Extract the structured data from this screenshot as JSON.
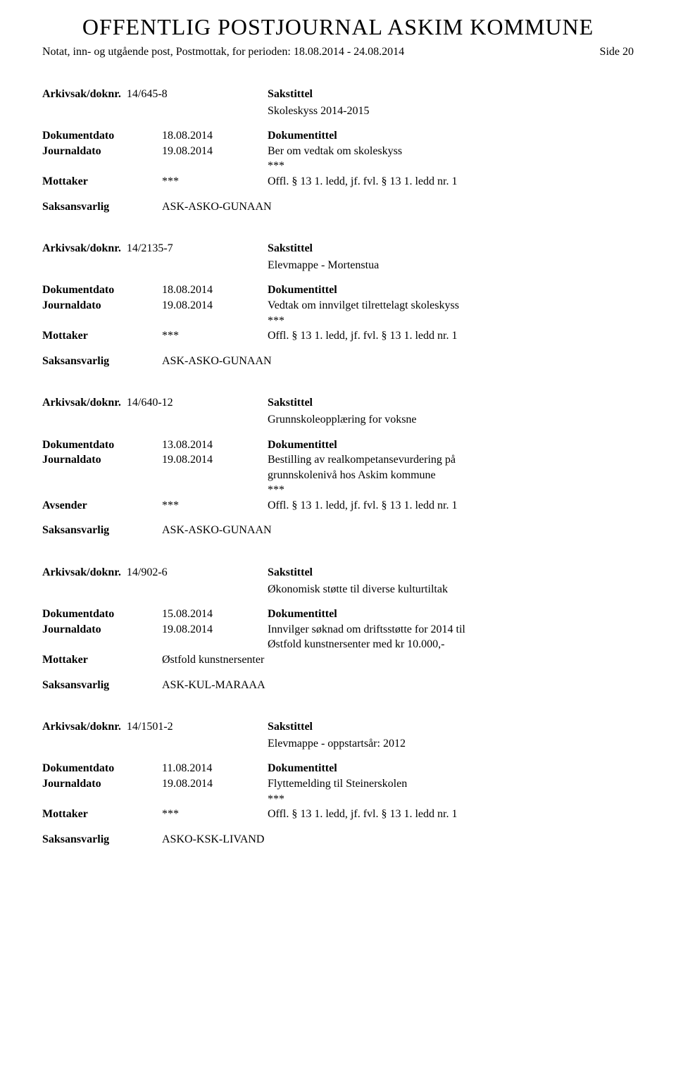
{
  "header": {
    "title": "OFFENTLIG POSTJOURNAL ASKIM KOMMUNE",
    "subtitle": "Notat, inn- og utgående post, Postmottak, for perioden: 18.08.2014 - 24.08.2014",
    "side_label": "Side 20"
  },
  "labels": {
    "arkiv": "Arkivsak/doknr.",
    "sakstittel": "Sakstittel",
    "dokumentdato": "Dokumentdato",
    "dokumentittel": "Dokumentittel",
    "journaldato": "Journaldato",
    "mottaker": "Mottaker",
    "avsender": "Avsender",
    "saksansvarlig": "Saksansvarlig"
  },
  "entries": [
    {
      "arkiv": "14/645-8",
      "sakstittel": "Skoleskyss 2014-2015",
      "dokumentdato": "18.08.2014",
      "journaldato": "19.08.2014",
      "doktittel_lines": [
        "Ber om vedtak om skoleskyss",
        "***"
      ],
      "party_label": "Mottaker",
      "party_value": "***",
      "party_right": "Offl. § 13 1. ledd, jf. fvl. § 13 1. ledd nr. 1",
      "saksansvarlig": "ASK-ASKO-GUNAAN"
    },
    {
      "arkiv": "14/2135-7",
      "sakstittel": "Elevmappe - Mortenstua",
      "dokumentdato": "18.08.2014",
      "journaldato": "19.08.2014",
      "doktittel_lines": [
        "Vedtak om innvilget tilrettelagt skoleskyss",
        "***"
      ],
      "party_label": "Mottaker",
      "party_value": "***",
      "party_right": "Offl. § 13 1. ledd, jf. fvl. § 13 1. ledd nr. 1",
      "saksansvarlig": "ASK-ASKO-GUNAAN"
    },
    {
      "arkiv": "14/640-12",
      "sakstittel": "Grunnskoleopplæring for voksne",
      "dokumentdato": "13.08.2014",
      "journaldato": "19.08.2014",
      "doktittel_lines": [
        "Bestilling av realkompetansevurdering på",
        "grunnskolenivå hos Askim kommune",
        "***"
      ],
      "party_label": "Avsender",
      "party_value": "***",
      "party_right": "Offl. § 13 1. ledd, jf. fvl. § 13 1. ledd nr. 1",
      "saksansvarlig": "ASK-ASKO-GUNAAN"
    },
    {
      "arkiv": "14/902-6",
      "sakstittel": "Økonomisk støtte til diverse kulturtiltak",
      "dokumentdato": "15.08.2014",
      "journaldato": "19.08.2014",
      "doktittel_lines": [
        "Innvilger søknad om driftsstøtte for 2014 til",
        "Østfold kunstnersenter med kr 10.000,-"
      ],
      "party_label": "Mottaker",
      "party_value": "Østfold kunstnersenter",
      "party_right": "",
      "saksansvarlig": "ASK-KUL-MARAAA"
    },
    {
      "arkiv": "14/1501-2",
      "sakstittel": "Elevmappe - oppstartsår: 2012",
      "dokumentdato": "11.08.2014",
      "journaldato": "19.08.2014",
      "doktittel_lines": [
        "Flyttemelding til Steinerskolen",
        "***"
      ],
      "party_label": "Mottaker",
      "party_value": "***",
      "party_right": "Offl. § 13 1. ledd, jf. fvl. § 13 1. ledd nr. 1",
      "saksansvarlig": "ASKO-KSK-LIVAND"
    }
  ]
}
